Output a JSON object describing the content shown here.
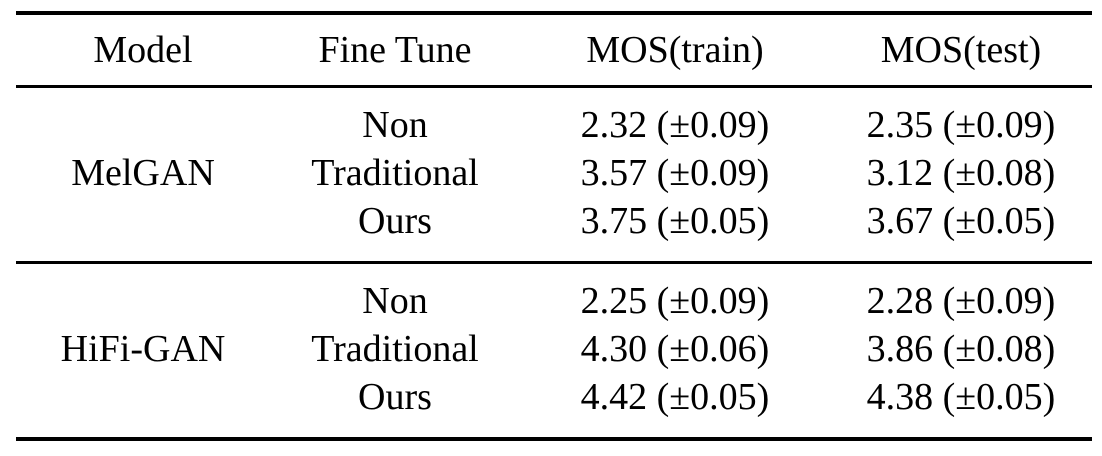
{
  "table": {
    "headers": {
      "model": "Model",
      "fine_tune": "Fine Tune",
      "mos_train": "MOS(train)",
      "mos_test": "MOS(test)"
    },
    "groups": [
      {
        "model": "MelGAN",
        "rows": [
          {
            "fine_tune": "Non",
            "mos_train": "2.32 (±0.09)",
            "mos_test": "2.35 (±0.09)"
          },
          {
            "fine_tune": "Traditional",
            "mos_train": "3.57 (±0.09)",
            "mos_test": "3.12 (±0.08)"
          },
          {
            "fine_tune": "Ours",
            "mos_train": "3.75 (±0.05)",
            "mos_test": "3.67 (±0.05)"
          }
        ]
      },
      {
        "model": "HiFi-GAN",
        "rows": [
          {
            "fine_tune": "Non",
            "mos_train": "2.25 (±0.09)",
            "mos_test": "2.28 (±0.09)"
          },
          {
            "fine_tune": "Traditional",
            "mos_train": "4.30 (±0.06)",
            "mos_test": "3.86 (±0.08)"
          },
          {
            "fine_tune": "Ours",
            "mos_train": "4.42 (±0.05)",
            "mos_test": "4.38 (±0.05)"
          }
        ]
      }
    ]
  },
  "colors": {
    "text": "#000000",
    "rules": "#000000",
    "background": "#ffffff"
  }
}
